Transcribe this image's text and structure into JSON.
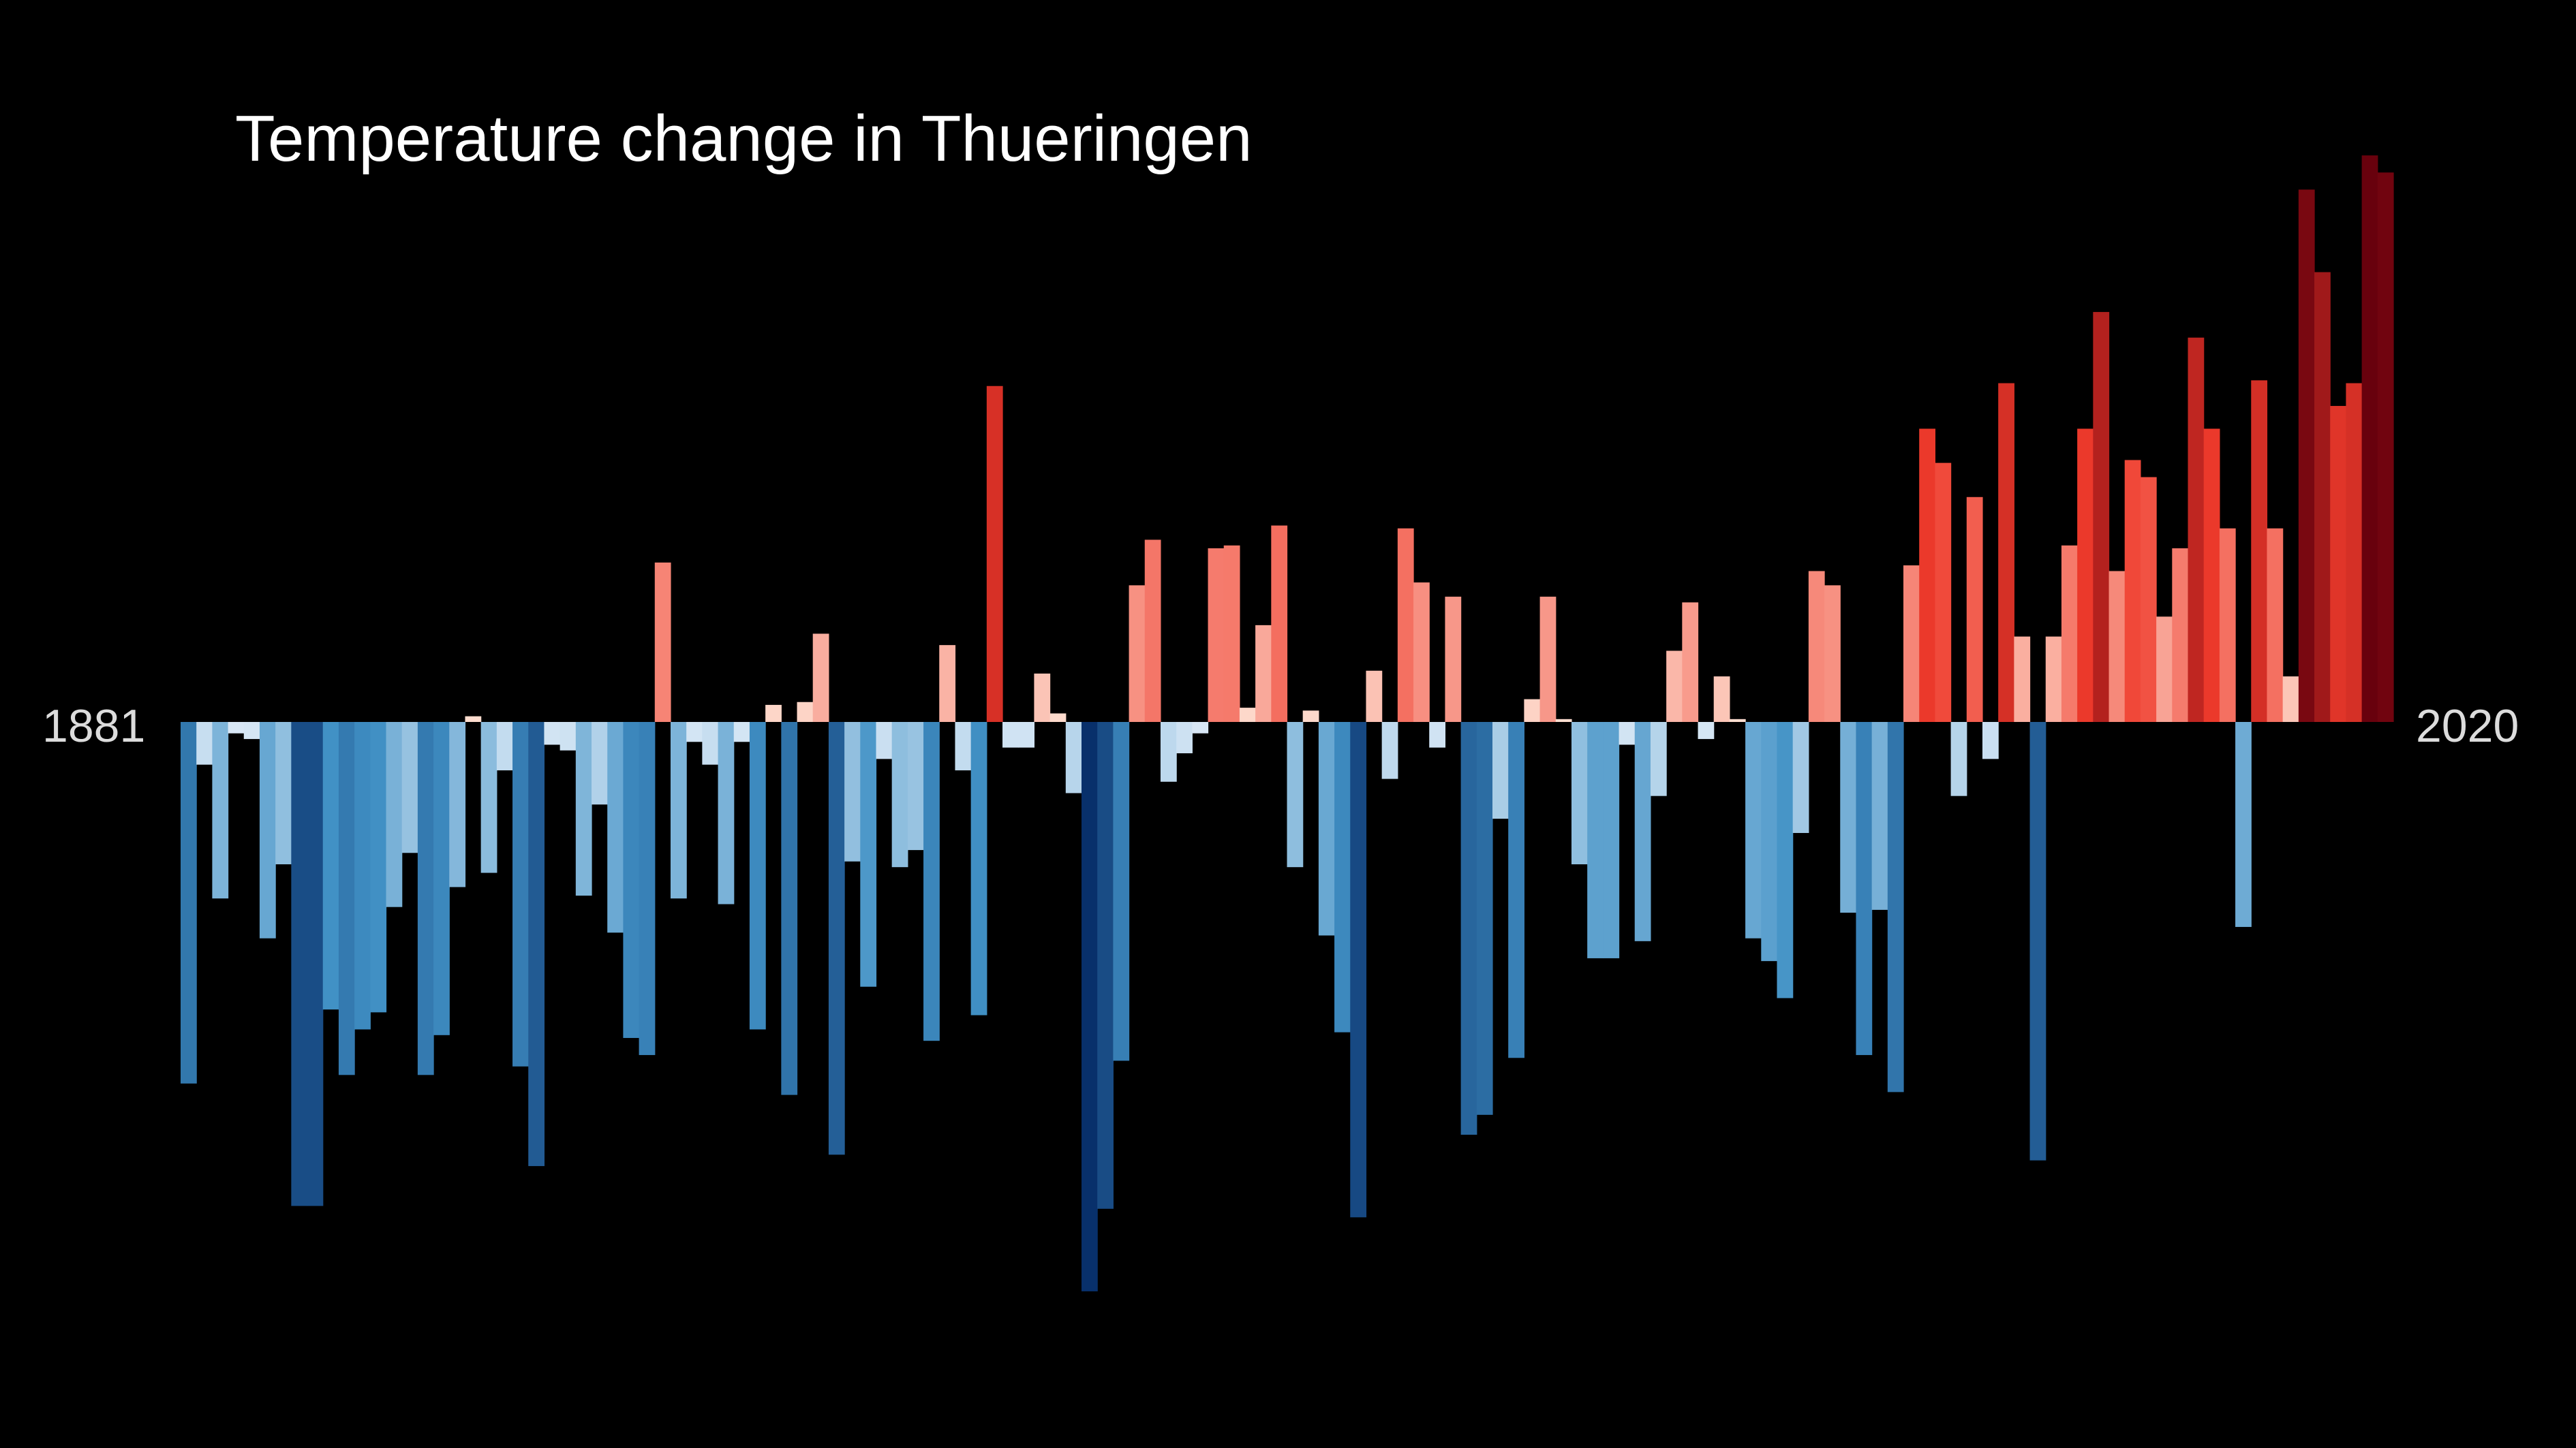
{
  "chart_data": {
    "type": "bar",
    "title": "Temperature change in Thueringen",
    "start_label": "1881",
    "end_label": "2020",
    "start_year": 1881,
    "end_year": 2020,
    "ylim": [
      -0.3,
      0.3
    ],
    "color_scale": {
      "neg_strong": "#08306b",
      "neg_mid": "#4292c6",
      "neg_weak": "#deebf7",
      "pos_weak": "#fee0d2",
      "pos_mid": "#ef3b2c",
      "pos_strong": "#67000d"
    },
    "values": [
      -0.127,
      -0.015,
      -0.062,
      -0.004,
      -0.006,
      -0.076,
      -0.05,
      -0.17,
      -0.17,
      -0.101,
      -0.124,
      -0.108,
      -0.102,
      -0.065,
      -0.046,
      -0.124,
      -0.11,
      -0.058,
      0.002,
      -0.053,
      -0.017,
      -0.121,
      -0.156,
      -0.008,
      -0.01,
      -0.061,
      -0.029,
      -0.074,
      -0.111,
      -0.117,
      0.056,
      -0.062,
      -0.007,
      -0.015,
      -0.064,
      -0.007,
      -0.108,
      0.006,
      -0.131,
      0.007,
      0.031,
      -0.152,
      -0.049,
      -0.093,
      -0.013,
      -0.051,
      -0.045,
      -0.112,
      0.027,
      -0.017,
      -0.103,
      0.118,
      -0.009,
      -0.009,
      0.017,
      0.003,
      -0.025,
      -0.2,
      -0.171,
      -0.119,
      0.048,
      0.064,
      -0.021,
      -0.011,
      -0.004,
      0.061,
      0.062,
      0.005,
      0.034,
      0.069,
      -0.051,
      0.004,
      -0.075,
      -0.109,
      -0.174,
      0.018,
      -0.02,
      0.068,
      0.049,
      -0.009,
      0.044,
      -0.145,
      -0.138,
      -0.034,
      -0.118,
      0.008,
      0.044,
      0.001,
      -0.05,
      -0.083,
      -0.083,
      -0.008,
      -0.077,
      -0.026,
      0.025,
      0.042,
      -0.006,
      0.016,
      0.001,
      -0.076,
      -0.084,
      -0.097,
      -0.039,
      0.053,
      0.048,
      -0.067,
      -0.117,
      -0.066,
      -0.13,
      0.055,
      0.103,
      0.091,
      -0.026,
      0.079,
      -0.013,
      0.119,
      0.03,
      -0.154,
      0.03,
      0.062,
      0.103,
      0.144,
      0.053,
      0.092,
      0.086,
      0.037,
      0.061,
      0.135,
      0.103,
      0.068,
      -0.072,
      0.12,
      0.068,
      0.016,
      0.187,
      0.158,
      0.111,
      0.119,
      0.199,
      0.193
    ]
  }
}
